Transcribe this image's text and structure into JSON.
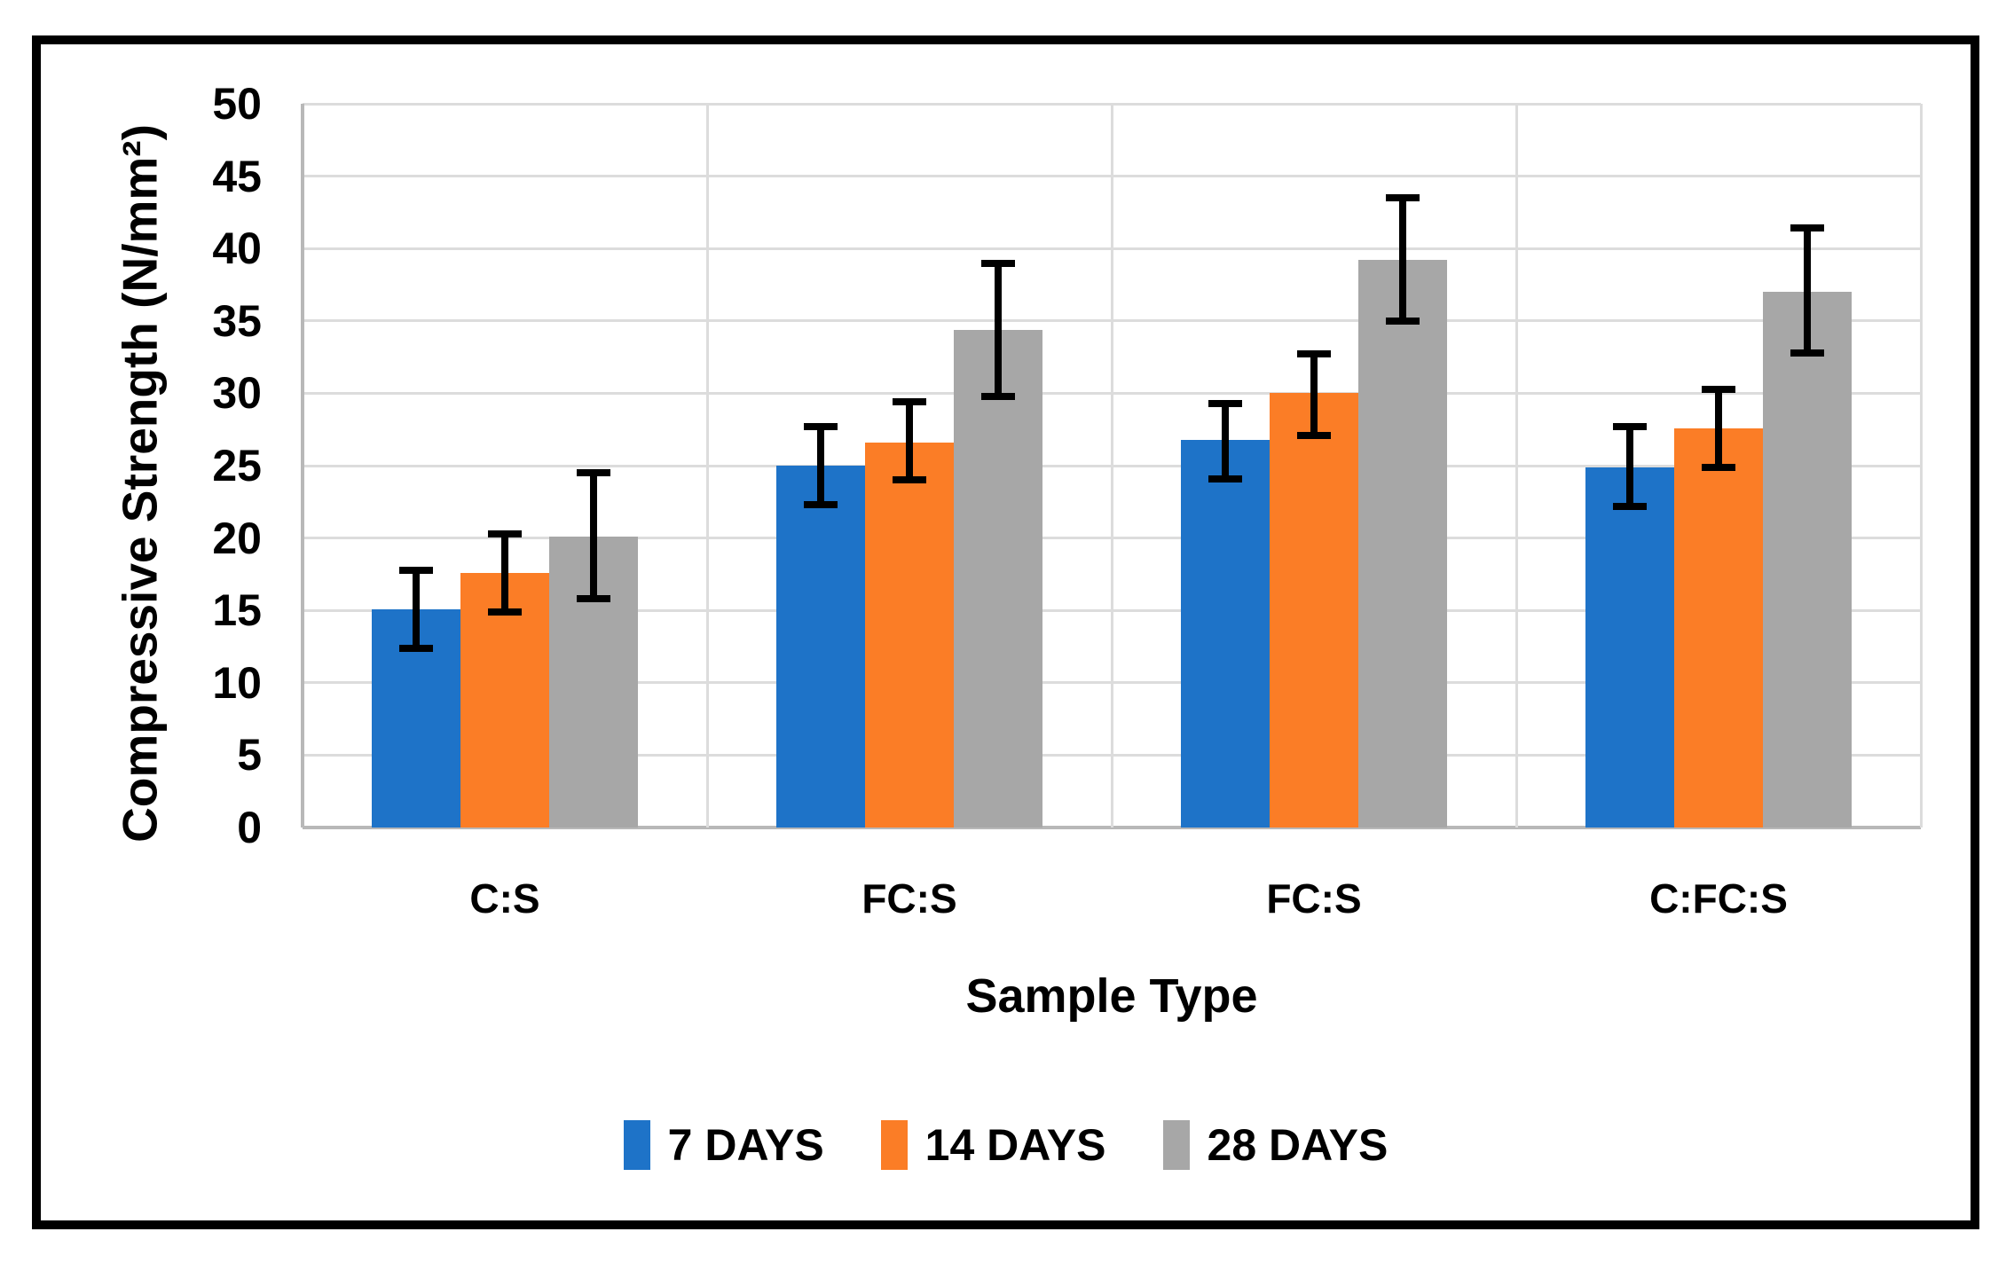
{
  "figure": {
    "background": "#FFFFFF",
    "border_color": "#000000"
  },
  "chart_data": {
    "type": "bar",
    "title": "",
    "xlabel": "Sample Type",
    "ylabel": "Compressive Strength (N/mm²)",
    "categories": [
      "C:S",
      "FC:S",
      "FC:S",
      "C:FC:S"
    ],
    "series": [
      {
        "name": "7 DAYS",
        "color": "#1E73C8",
        "values": [
          15.1,
          25.0,
          26.8,
          24.9
        ],
        "error_low": [
          12.4,
          22.3,
          24.1,
          22.2
        ],
        "error_high": [
          17.8,
          27.7,
          29.3,
          27.7
        ]
      },
      {
        "name": "14 DAYS",
        "color": "#FB7D26",
        "values": [
          17.6,
          26.6,
          30.0,
          27.6
        ],
        "error_low": [
          14.9,
          24.0,
          27.1,
          24.9
        ],
        "error_high": [
          20.3,
          29.4,
          32.7,
          30.3
        ]
      },
      {
        "name": "28 DAYS",
        "color": "#A7A7A7",
        "values": [
          20.1,
          34.4,
          39.2,
          37.0
        ],
        "error_low": [
          15.8,
          29.8,
          35.0,
          32.8
        ],
        "error_high": [
          24.5,
          39.0,
          43.5,
          41.4
        ]
      }
    ],
    "ylim": [
      0,
      50
    ],
    "yticks": [
      0,
      5,
      10,
      15,
      20,
      25,
      30,
      35,
      40,
      45,
      50
    ],
    "grid": true,
    "error_bars": true,
    "legend_position": "bottom",
    "gridline_color": "#DCDCDC",
    "axis_line_color": "#B8B8B8",
    "text_color": "#000000"
  }
}
